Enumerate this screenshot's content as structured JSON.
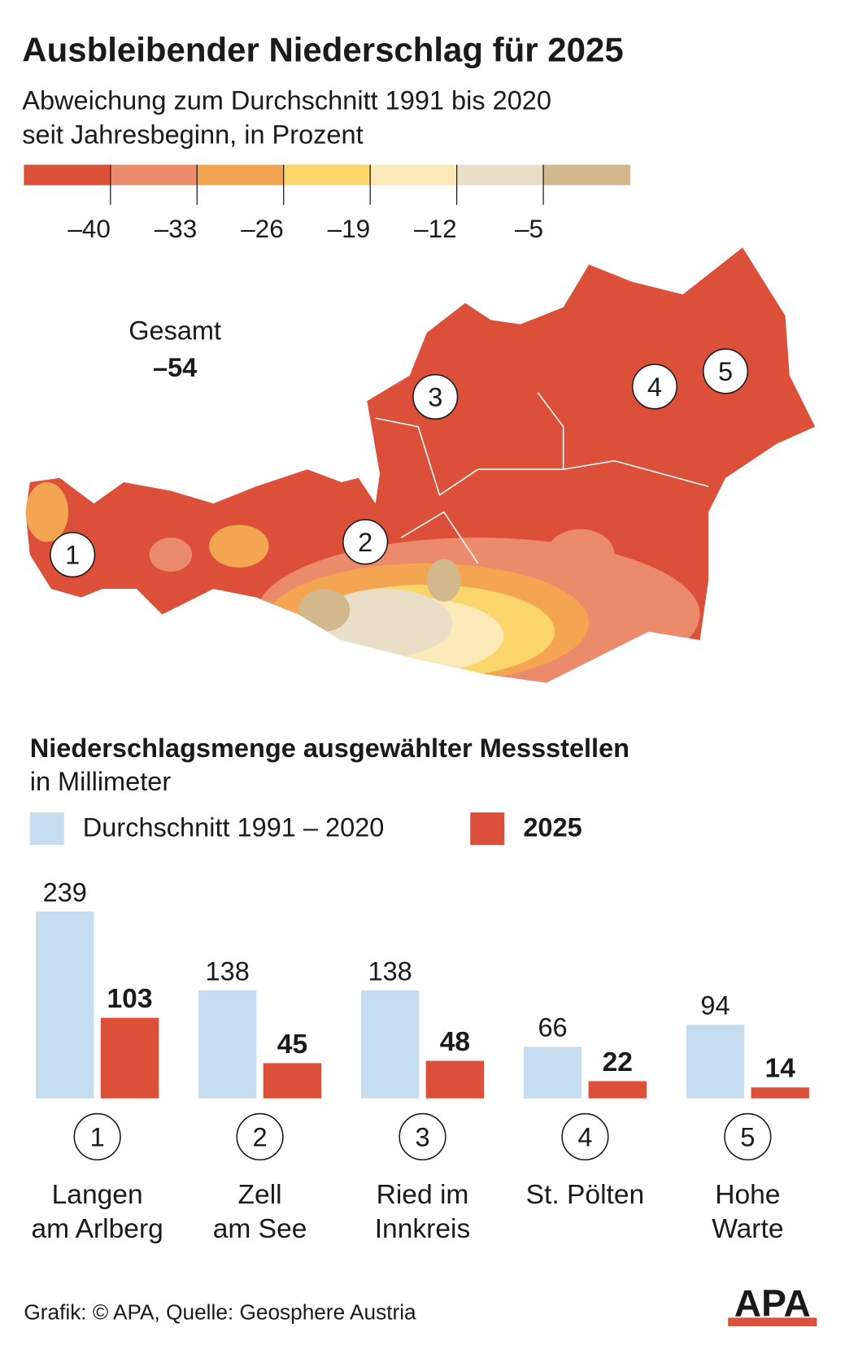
{
  "title": "Ausbleibender Niederschlag für 2025",
  "map": {
    "subtitle": [
      "Abweichung zum Durchschnitt 1991 bis 2020",
      "seit Jahresbeginn, in Prozent"
    ],
    "scale_colors": [
      "#dc4f38",
      "#ec8a6c",
      "#f4a552",
      "#fbd56a",
      "#fbe9b8",
      "#e9dfc8",
      "#d2b88c"
    ],
    "scale_ticks": [
      {
        "value": -40,
        "label": "–40"
      },
      {
        "value": -33,
        "label": "–33"
      },
      {
        "value": -26,
        "label": "–26"
      },
      {
        "value": -19,
        "label": "–19"
      },
      {
        "value": -12,
        "label": "–12"
      },
      {
        "value": -5,
        "label": "–5"
      }
    ],
    "total_label": "Gesamt",
    "total": {
      "value": -54,
      "label": "–54"
    },
    "markers": [
      "1",
      "2",
      "3",
      "4",
      "5"
    ]
  },
  "chart_data": {
    "type": "bar",
    "title": "Niederschlagsmenge ausgewählter Messstellen",
    "subtitle": "in Millimeter",
    "category_numbers": [
      "1",
      "2",
      "3",
      "4",
      "5"
    ],
    "categories": [
      [
        "Langen",
        "am Arlberg"
      ],
      [
        "Zell",
        "am See"
      ],
      [
        "Ried im",
        "Innkreis"
      ],
      [
        "St. Pölten"
      ],
      [
        "Hohe",
        "Warte"
      ]
    ],
    "series": [
      {
        "name": "Durchschnitt 1991 – 2020",
        "color": "#c6dcef",
        "values": [
          239,
          138,
          138,
          66,
          94
        ]
      },
      {
        "name": "2025",
        "color": "#dc4f38",
        "values": [
          103,
          45,
          48,
          22,
          14
        ]
      }
    ]
  },
  "footer": {
    "source": "Grafik: © APA, Quelle: Geosphere Austria",
    "logo": "APA"
  }
}
